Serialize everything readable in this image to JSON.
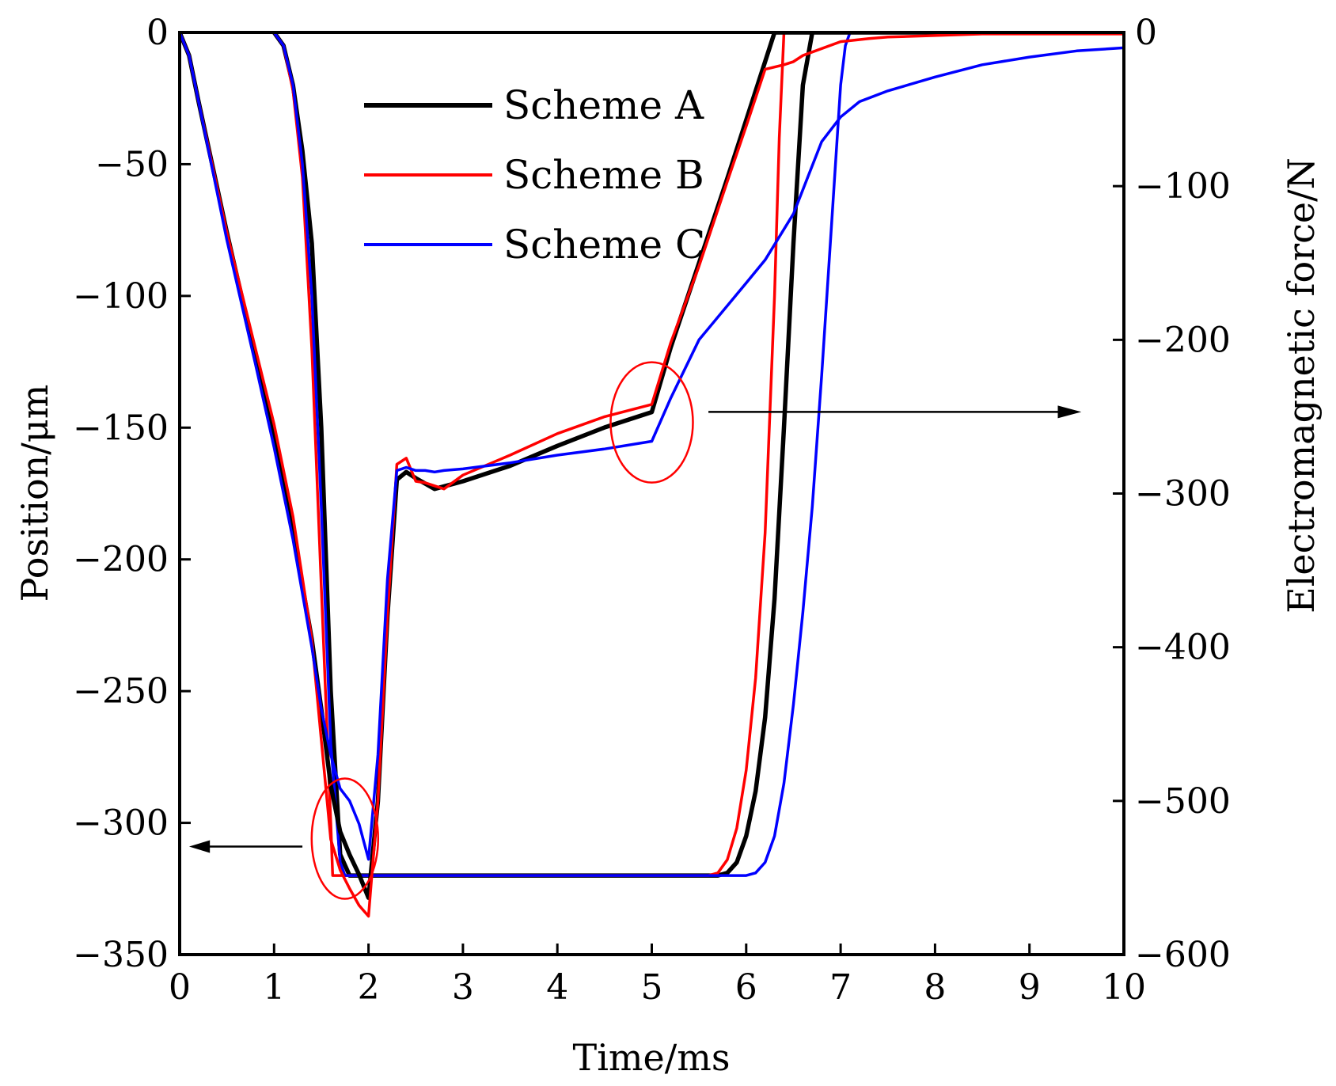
{
  "chart_data": {
    "type": "line",
    "title": "",
    "xlabel": "Time/ms",
    "ylabel": "Position/μm",
    "y2label": "Electromagnetic force/N",
    "xlim": [
      0,
      10
    ],
    "ylim": [
      -350,
      0
    ],
    "y2lim": [
      -600,
      0
    ],
    "xticks": [
      0,
      1,
      2,
      3,
      4,
      5,
      6,
      7,
      8,
      9,
      10
    ],
    "yticks": [
      0,
      -50,
      -100,
      -150,
      -200,
      -250,
      -300,
      -350
    ],
    "y2ticks": [
      0,
      -100,
      -200,
      -300,
      -400,
      -500,
      -600
    ],
    "xtick_labels": [
      "0",
      "1",
      "2",
      "3",
      "4",
      "5",
      "6",
      "7",
      "8",
      "9",
      "10"
    ],
    "ytick_labels": [
      "0",
      "−50",
      "−100",
      "−150",
      "−200",
      "−250",
      "−300",
      "−350"
    ],
    "y2tick_labels": [
      "0",
      "−100",
      "−200",
      "−300",
      "−400",
      "−500",
      "−600"
    ],
    "legend_position": "top-center",
    "colors": {
      "scheme_a": "#000000",
      "scheme_b": "#ff0000",
      "scheme_c": "#0000ff"
    },
    "series": [
      {
        "name": "Scheme A",
        "quantity": "position",
        "axis": "left",
        "color": "#000000",
        "x": [
          1.0,
          1.1,
          1.2,
          1.3,
          1.4,
          1.5,
          1.6,
          1.7,
          1.8,
          2.0,
          3.0,
          4.0,
          5.0,
          5.7,
          5.8,
          5.9,
          6.0,
          6.1,
          6.2,
          6.3,
          6.4,
          6.5,
          6.6,
          6.7
        ],
        "y": [
          0,
          -5,
          -20,
          -45,
          -80,
          -150,
          -250,
          -312,
          -320,
          -320,
          -320,
          -320,
          -320,
          -320,
          -319,
          -315,
          -305,
          -288,
          -260,
          -215,
          -150,
          -80,
          -20,
          0
        ]
      },
      {
        "name": "Scheme B",
        "quantity": "position",
        "axis": "left",
        "color": "#ff0000",
        "x": [
          1.0,
          1.1,
          1.2,
          1.3,
          1.4,
          1.5,
          1.6,
          1.62,
          2.0,
          3.0,
          4.0,
          5.0,
          5.6,
          5.7,
          5.8,
          5.9,
          6.0,
          6.1,
          6.2,
          6.3,
          6.35,
          6.4
        ],
        "y": [
          0,
          -5,
          -22,
          -55,
          -120,
          -210,
          -300,
          -320,
          -320,
          -320,
          -320,
          -320,
          -320,
          -319,
          -314,
          -302,
          -280,
          -245,
          -190,
          -100,
          -40,
          0
        ]
      },
      {
        "name": "Scheme C",
        "quantity": "position",
        "axis": "left",
        "color": "#0000ff",
        "x": [
          1.0,
          1.1,
          1.2,
          1.3,
          1.4,
          1.5,
          1.6,
          1.7,
          1.75,
          2.0,
          3.0,
          4.0,
          5.0,
          5.9,
          6.0,
          6.1,
          6.2,
          6.3,
          6.4,
          6.5,
          6.6,
          6.7,
          6.8,
          6.9,
          7.0,
          7.05,
          7.1
        ],
        "y": [
          0,
          -5,
          -20,
          -50,
          -100,
          -180,
          -270,
          -315,
          -320,
          -320,
          -320,
          -320,
          -320,
          -320,
          -320,
          -319,
          -315,
          -305,
          -285,
          -255,
          -220,
          -180,
          -130,
          -75,
          -20,
          -5,
          0
        ]
      },
      {
        "name": "Scheme A",
        "quantity": "electromagnetic force",
        "axis": "right",
        "color": "#000000",
        "x": [
          0,
          0.1,
          0.2,
          0.5,
          0.8,
          1.0,
          1.2,
          1.4,
          1.5,
          1.6,
          1.7,
          1.8,
          1.9,
          2.0,
          2.1,
          2.2,
          2.3,
          2.4,
          2.5,
          2.7,
          3.0,
          3.5,
          4.0,
          4.5,
          5.0,
          5.2,
          5.5,
          5.8,
          6.0,
          6.2,
          6.3,
          6.5,
          6.8,
          7.0,
          7.5,
          8.0,
          8.5,
          9.0,
          9.5,
          10.0
        ],
        "y": [
          0,
          -15,
          -45,
          -130,
          -210,
          -265,
          -325,
          -395,
          -440,
          -490,
          -520,
          -535,
          -548,
          -563,
          -500,
          -380,
          -291,
          -286,
          -290,
          -297,
          -292,
          -282,
          -269,
          -257,
          -247,
          -205,
          -150,
          -95,
          -57,
          -19,
          0,
          0,
          0,
          0,
          0,
          0,
          0,
          0,
          0,
          0
        ]
      },
      {
        "name": "Scheme B",
        "quantity": "electromagnetic force",
        "axis": "right",
        "color": "#ff0000",
        "x": [
          0,
          0.1,
          0.2,
          0.5,
          0.8,
          1.0,
          1.2,
          1.4,
          1.5,
          1.6,
          1.7,
          1.8,
          1.9,
          2.0,
          2.1,
          2.2,
          2.3,
          2.4,
          2.5,
          2.6,
          2.8,
          3.0,
          3.5,
          4.0,
          4.5,
          5.0,
          5.2,
          5.5,
          5.8,
          6.0,
          6.2,
          6.4,
          6.5,
          6.6,
          7.0,
          7.3,
          7.5,
          8.0,
          8.5,
          9.0,
          9.5,
          10.0
        ],
        "y": [
          0,
          -15,
          -45,
          -130,
          -205,
          -255,
          -315,
          -395,
          -460,
          -525,
          -545,
          -557,
          -568,
          -575,
          -500,
          -380,
          -281,
          -277,
          -292,
          -293,
          -297,
          -288,
          -275,
          -261,
          -250,
          -242,
          -202,
          -152,
          -97,
          -61,
          -24,
          -21,
          -19,
          -15,
          -6,
          -4,
          -3,
          -2,
          -1,
          -1,
          -1,
          -1
        ]
      },
      {
        "name": "Scheme C",
        "quantity": "electromagnetic force",
        "axis": "right",
        "color": "#0000ff",
        "x": [
          0,
          0.1,
          0.2,
          0.5,
          0.8,
          1.0,
          1.2,
          1.4,
          1.5,
          1.6,
          1.7,
          1.8,
          1.9,
          2.0,
          2.1,
          2.2,
          2.3,
          2.4,
          2.5,
          2.6,
          2.7,
          2.8,
          3.0,
          3.5,
          4.0,
          4.5,
          5.0,
          5.2,
          5.5,
          6.0,
          6.2,
          6.5,
          6.8,
          7.0,
          7.2,
          7.5,
          8.0,
          8.5,
          9.0,
          9.5,
          10.0
        ],
        "y": [
          0,
          -15,
          -45,
          -135,
          -215,
          -270,
          -330,
          -400,
          -440,
          -470,
          -492,
          -500,
          -515,
          -538,
          -470,
          -356,
          -285,
          -283,
          -285,
          -285,
          -286,
          -285,
          -284,
          -280,
          -275,
          -271,
          -266,
          -238,
          -200,
          -163,
          -148,
          -118,
          -71,
          -55,
          -45,
          -38,
          -29,
          -21,
          -16,
          -12,
          -10
        ]
      }
    ],
    "annotations": {
      "left_arrow_target": "Position",
      "right_arrow_target": "Electromagnetic force",
      "highlight_circles": 2
    }
  }
}
